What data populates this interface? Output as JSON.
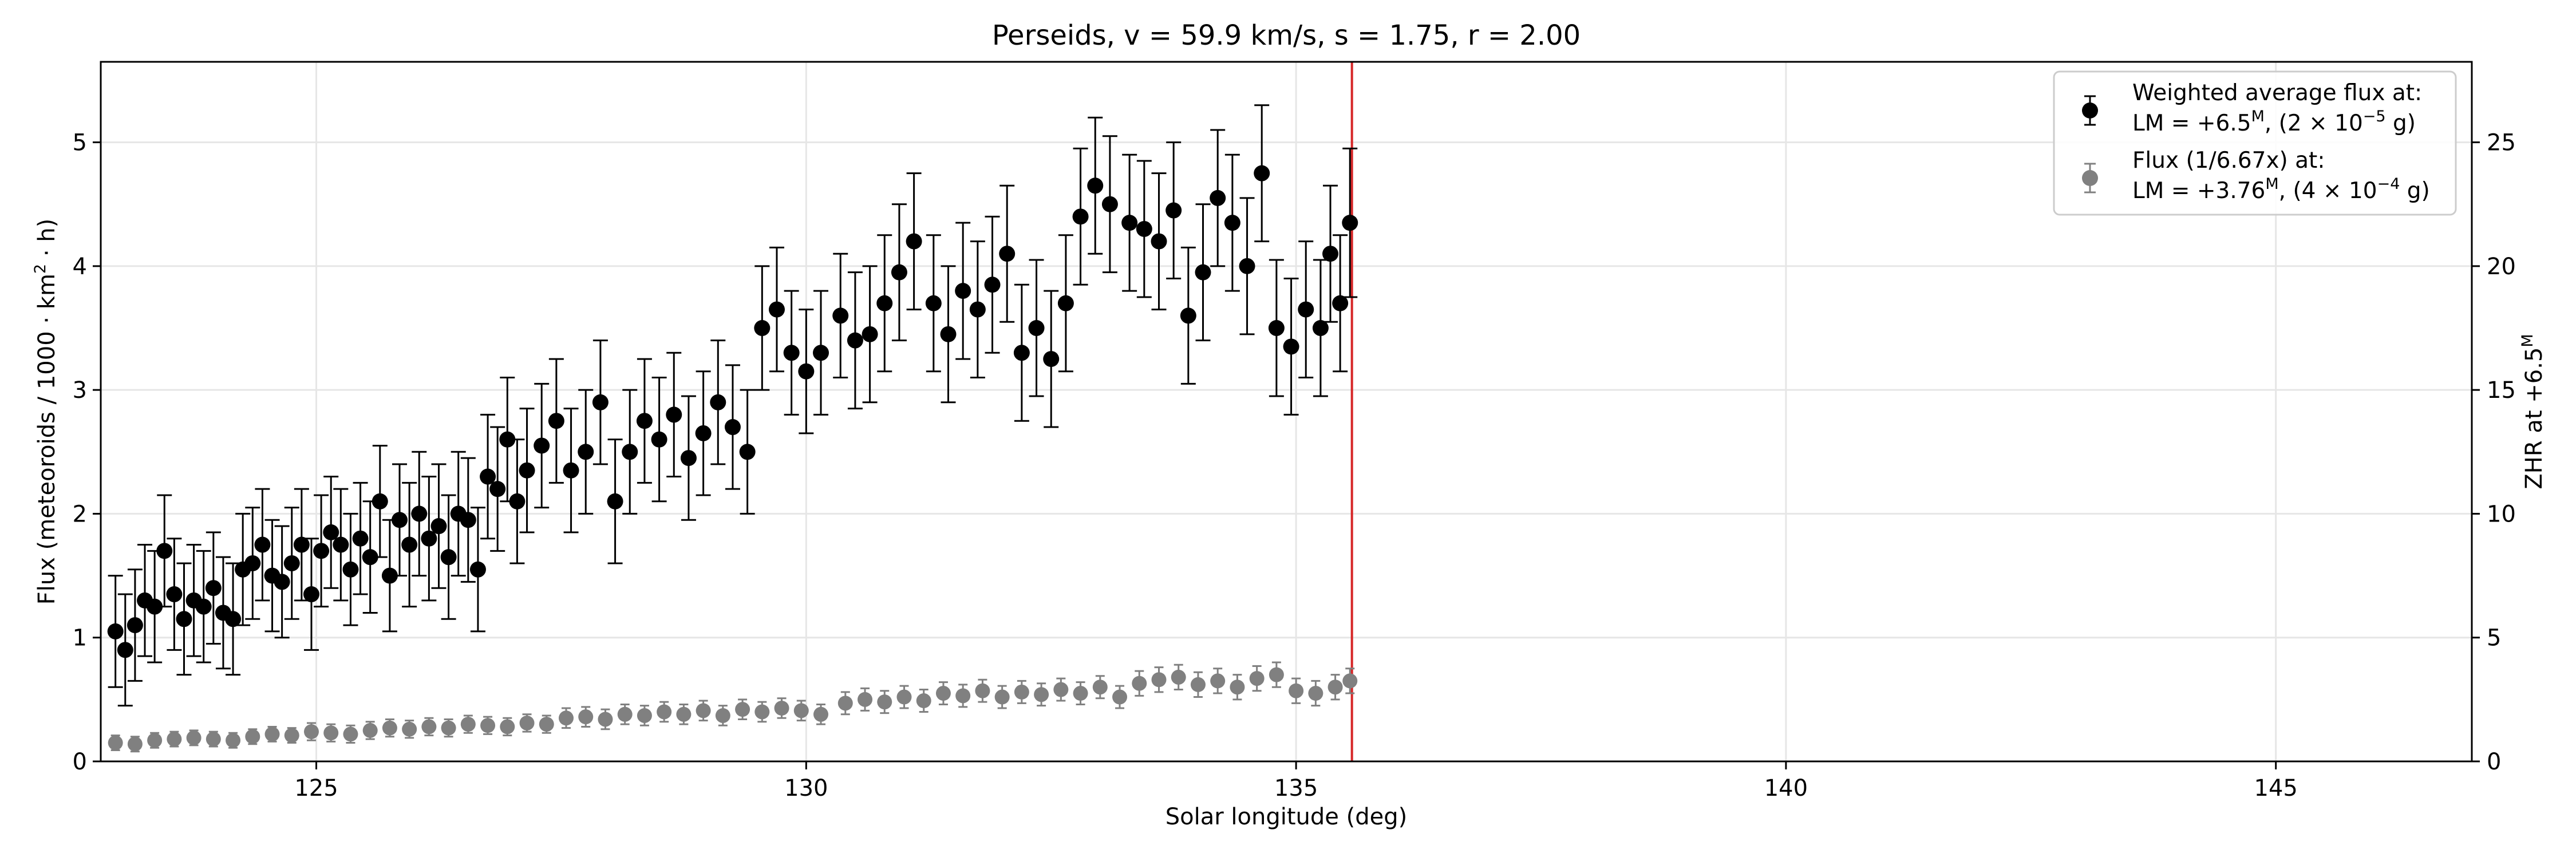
{
  "chart_data": {
    "type": "scatter",
    "title": "Perseids, v = 59.9 km/s, s = 1.75, r = 2.00",
    "xlabel": "Solar longitude (deg)",
    "ylabel": "Flux (meteoroids / 1000 · km² · h)",
    "ylabel_right": "ZHR at +6.5ᴹ",
    "xlim": [
      122.8,
      147.0
    ],
    "ylim": [
      0,
      5.65
    ],
    "ylim_right": [
      0,
      28.25
    ],
    "x_ticks": [
      125,
      130,
      135,
      140,
      145
    ],
    "x_tick_labels": [
      "125",
      "130",
      "135",
      "140",
      "145"
    ],
    "y_ticks": [
      0,
      1,
      2,
      3,
      4,
      5
    ],
    "y_tick_labels": [
      "0",
      "1",
      "2",
      "3",
      "4",
      "5"
    ],
    "y_right_ticks": [
      0,
      5,
      10,
      15,
      20,
      25
    ],
    "y_right_tick_labels": [
      "0",
      "5",
      "10",
      "15",
      "20",
      "25"
    ],
    "grid": true,
    "legend_position": "top-right",
    "vertical_line": {
      "x": 135.57,
      "color": "#d62728"
    },
    "series": [
      {
        "name": "Weighted average flux at: LM = +6.5ᴹ, (2 × 10⁻⁵ g)",
        "color": "#000000",
        "x": [
          122.95,
          123.05,
          123.15,
          123.25,
          123.35,
          123.45,
          123.55,
          123.65,
          123.75,
          123.85,
          123.95,
          124.05,
          124.15,
          124.25,
          124.35,
          124.45,
          124.55,
          124.65,
          124.75,
          124.85,
          124.95,
          125.05,
          125.15,
          125.25,
          125.35,
          125.45,
          125.55,
          125.65,
          125.75,
          125.85,
          125.95,
          126.05,
          126.15,
          126.25,
          126.35,
          126.45,
          126.55,
          126.65,
          126.75,
          126.85,
          126.95,
          127.05,
          127.15,
          127.3,
          127.45,
          127.6,
          127.75,
          127.9,
          128.05,
          128.2,
          128.35,
          128.5,
          128.65,
          128.8,
          128.95,
          129.1,
          129.25,
          129.4,
          129.55,
          129.7,
          129.85,
          130.0,
          130.15,
          130.35,
          130.5,
          130.65,
          130.8,
          130.95,
          131.1,
          131.3,
          131.45,
          131.6,
          131.75,
          131.9,
          132.05,
          132.2,
          132.35,
          132.5,
          132.65,
          132.8,
          132.95,
          133.1,
          133.3,
          133.45,
          133.6,
          133.75,
          133.9,
          134.05,
          134.2,
          134.35,
          134.5,
          134.65,
          134.8,
          134.95,
          135.1,
          135.25,
          135.35,
          135.45,
          135.55
        ],
        "y": [
          1.05,
          0.9,
          1.1,
          1.3,
          1.25,
          1.7,
          1.35,
          1.15,
          1.3,
          1.25,
          1.4,
          1.2,
          1.15,
          1.55,
          1.6,
          1.75,
          1.5,
          1.45,
          1.6,
          1.75,
          1.35,
          1.7,
          1.85,
          1.75,
          1.55,
          1.8,
          1.65,
          2.1,
          1.5,
          1.95,
          1.75,
          2.0,
          1.8,
          1.9,
          1.65,
          2.0,
          1.95,
          1.55,
          2.3,
          2.2,
          2.6,
          2.1,
          2.35,
          2.55,
          2.75,
          2.35,
          2.5,
          2.9,
          2.1,
          2.5,
          2.75,
          2.6,
          2.8,
          2.45,
          2.65,
          2.9,
          2.7,
          2.5,
          3.5,
          3.65,
          3.3,
          3.15,
          3.3,
          3.6,
          3.4,
          3.45,
          3.7,
          3.95,
          4.2,
          3.7,
          3.45,
          3.8,
          3.65,
          3.85,
          4.1,
          3.3,
          3.5,
          3.25,
          3.7,
          4.4,
          4.65,
          4.5,
          4.35,
          4.3,
          4.2,
          4.45,
          3.6,
          3.95,
          4.55,
          4.35,
          4.0,
          4.75,
          3.5,
          3.35,
          3.65,
          3.5,
          4.1,
          3.7,
          4.35
        ],
        "err": [
          0.45,
          0.45,
          0.45,
          0.45,
          0.45,
          0.45,
          0.45,
          0.45,
          0.45,
          0.45,
          0.45,
          0.45,
          0.45,
          0.45,
          0.45,
          0.45,
          0.45,
          0.45,
          0.45,
          0.45,
          0.45,
          0.45,
          0.45,
          0.45,
          0.45,
          0.45,
          0.45,
          0.45,
          0.45,
          0.45,
          0.5,
          0.5,
          0.5,
          0.5,
          0.5,
          0.5,
          0.5,
          0.5,
          0.5,
          0.5,
          0.5,
          0.5,
          0.5,
          0.5,
          0.5,
          0.5,
          0.5,
          0.5,
          0.5,
          0.5,
          0.5,
          0.5,
          0.5,
          0.5,
          0.5,
          0.5,
          0.5,
          0.5,
          0.5,
          0.5,
          0.5,
          0.5,
          0.5,
          0.5,
          0.55,
          0.55,
          0.55,
          0.55,
          0.55,
          0.55,
          0.55,
          0.55,
          0.55,
          0.55,
          0.55,
          0.55,
          0.55,
          0.55,
          0.55,
          0.55,
          0.55,
          0.55,
          0.55,
          0.55,
          0.55,
          0.55,
          0.55,
          0.55,
          0.55,
          0.55,
          0.55,
          0.55,
          0.55,
          0.55,
          0.55,
          0.55,
          0.55,
          0.55,
          0.6
        ]
      },
      {
        "name": "Flux (1/6.67x) at: LM = +3.76ᴹ, (4 × 10⁻⁴ g)",
        "color": "#808080",
        "x": [
          122.95,
          123.15,
          123.35,
          123.55,
          123.75,
          123.95,
          124.15,
          124.35,
          124.55,
          124.75,
          124.95,
          125.15,
          125.35,
          125.55,
          125.75,
          125.95,
          126.15,
          126.35,
          126.55,
          126.75,
          126.95,
          127.15,
          127.35,
          127.55,
          127.75,
          127.95,
          128.15,
          128.35,
          128.55,
          128.75,
          128.95,
          129.15,
          129.35,
          129.55,
          129.75,
          129.95,
          130.15,
          130.4,
          130.6,
          130.8,
          131.0,
          131.2,
          131.4,
          131.6,
          131.8,
          132.0,
          132.2,
          132.4,
          132.6,
          132.8,
          133.0,
          133.2,
          133.4,
          133.6,
          133.8,
          134.0,
          134.2,
          134.4,
          134.6,
          134.8,
          135.0,
          135.2,
          135.4,
          135.55
        ],
        "y": [
          0.15,
          0.14,
          0.17,
          0.18,
          0.19,
          0.18,
          0.17,
          0.2,
          0.22,
          0.21,
          0.24,
          0.23,
          0.22,
          0.25,
          0.27,
          0.26,
          0.28,
          0.27,
          0.3,
          0.29,
          0.28,
          0.31,
          0.3,
          0.35,
          0.36,
          0.34,
          0.38,
          0.37,
          0.4,
          0.38,
          0.41,
          0.37,
          0.42,
          0.4,
          0.43,
          0.41,
          0.38,
          0.47,
          0.5,
          0.48,
          0.52,
          0.49,
          0.55,
          0.53,
          0.57,
          0.52,
          0.56,
          0.54,
          0.58,
          0.55,
          0.6,
          0.52,
          0.63,
          0.66,
          0.68,
          0.62,
          0.65,
          0.6,
          0.67,
          0.7,
          0.57,
          0.55,
          0.6,
          0.65
        ],
        "err": [
          0.06,
          0.06,
          0.06,
          0.06,
          0.06,
          0.06,
          0.06,
          0.06,
          0.06,
          0.06,
          0.07,
          0.07,
          0.07,
          0.07,
          0.07,
          0.07,
          0.07,
          0.07,
          0.07,
          0.07,
          0.07,
          0.07,
          0.07,
          0.08,
          0.08,
          0.08,
          0.08,
          0.08,
          0.08,
          0.08,
          0.08,
          0.08,
          0.08,
          0.08,
          0.08,
          0.08,
          0.08,
          0.09,
          0.09,
          0.09,
          0.09,
          0.09,
          0.09,
          0.09,
          0.09,
          0.09,
          0.09,
          0.09,
          0.09,
          0.09,
          0.09,
          0.09,
          0.1,
          0.1,
          0.1,
          0.1,
          0.1,
          0.1,
          0.1,
          0.1,
          0.1,
          0.1,
          0.1,
          0.1
        ]
      }
    ],
    "legend": {
      "entry1_line1": "Weighted average flux at:",
      "entry1_line2_a": "LM = +6.5",
      "entry1_line2_sup1": "M",
      "entry1_line2_b": ", (2 × 10",
      "entry1_line2_sup2": "−5",
      "entry1_line2_c": " g)",
      "entry2_line1": "Flux (1/6.67x) at:",
      "entry2_line2_a": "LM = +3.76",
      "entry2_line2_sup1": "M",
      "entry2_line2_b": ", (4 × 10",
      "entry2_line2_sup2": "−4",
      "entry2_line2_c": " g)"
    },
    "ylabel_parts": {
      "a": "Flux (meteoroids / 1000 · km",
      "sup": "2",
      "b": " · h)"
    },
    "ylabel_right_parts": {
      "a": "ZHR at +6.5",
      "sup": "M"
    }
  }
}
